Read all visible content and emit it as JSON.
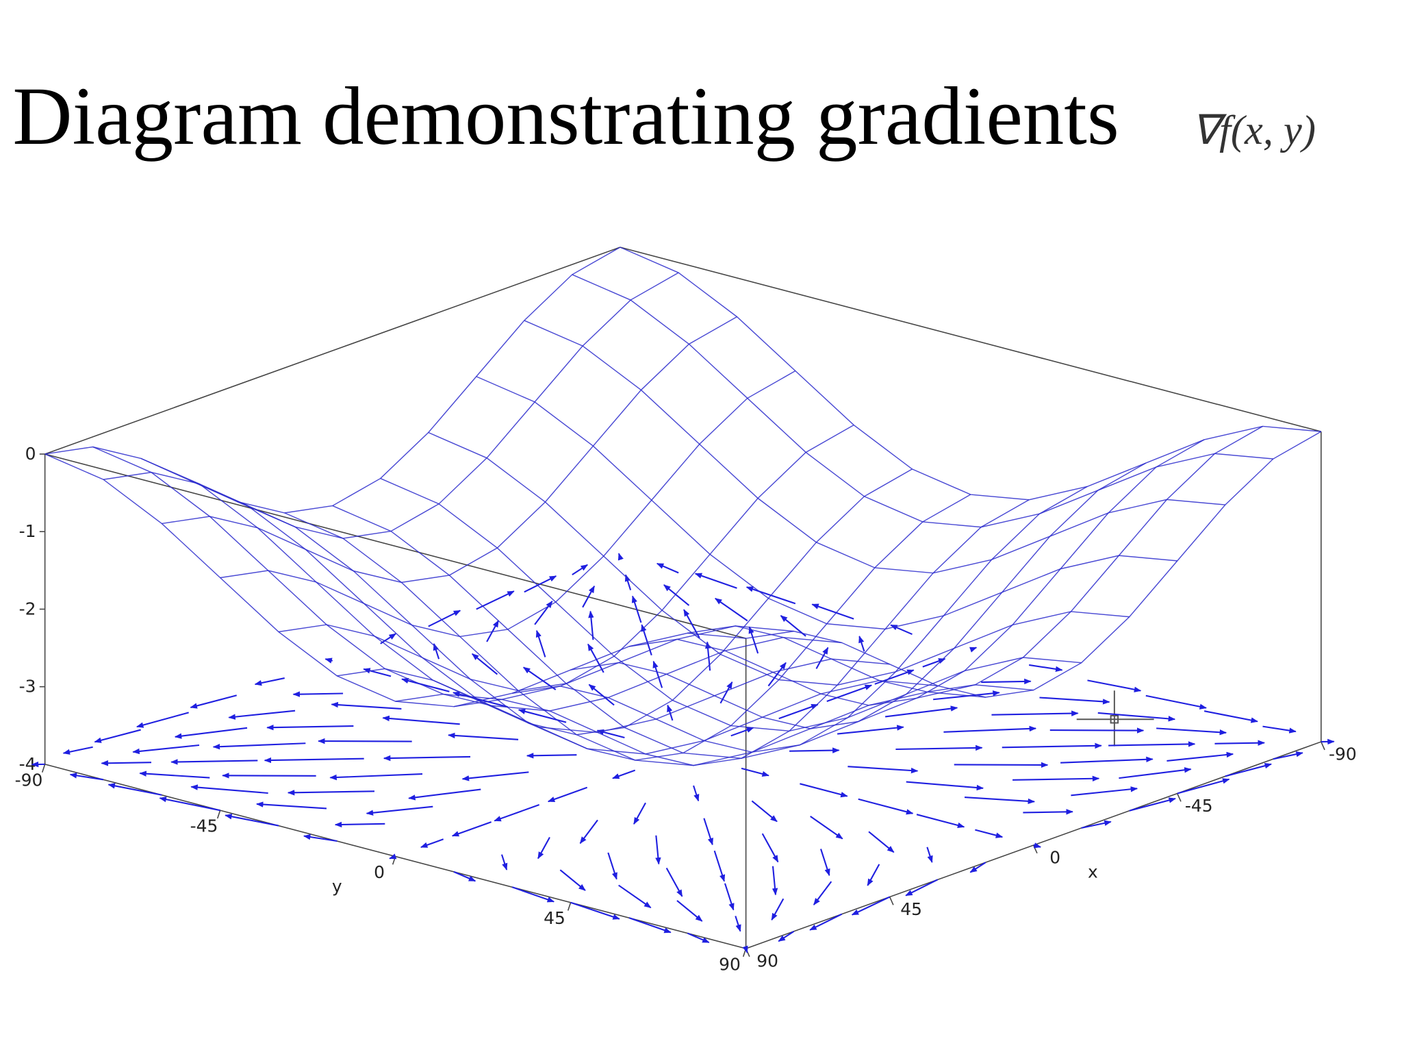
{
  "chart_data": {
    "type": "surface",
    "title": "Diagram demonstrating gradients",
    "annotation": "∇f(x, y)",
    "x_label": "x",
    "y_label": "y",
    "x": [
      -90,
      -75,
      -60,
      -45,
      -30,
      -15,
      0,
      15,
      30,
      45,
      60,
      75,
      90
    ],
    "y": [
      -90,
      -75,
      -60,
      -45,
      -30,
      -15,
      0,
      15,
      30,
      45,
      60,
      75,
      90
    ],
    "z": [
      [
        0,
        -0.13,
        -0.5,
        -1,
        -1.5,
        -1.87,
        -2,
        -1.87,
        -1.5,
        -1,
        -0.5,
        -0.13,
        0
      ],
      [
        -0.13,
        -0.26,
        -0.63,
        -1.13,
        -1.63,
        -2,
        -2.13,
        -2,
        -1.63,
        -1.13,
        -0.63,
        -0.26,
        -0.13
      ],
      [
        -0.5,
        -0.63,
        -1,
        -1.5,
        -2,
        -2.37,
        -2.5,
        -2.37,
        -2,
        -1.5,
        -1,
        -0.63,
        -0.5
      ],
      [
        -1,
        -1.13,
        -1.5,
        -2,
        -2.5,
        -2.87,
        -3,
        -2.87,
        -2.5,
        -2,
        -1.5,
        -1.13,
        -1
      ],
      [
        -1.5,
        -1.63,
        -2,
        -2.5,
        -3,
        -3.37,
        -3.5,
        -3.37,
        -3,
        -2.5,
        -2,
        -1.63,
        -1.5
      ],
      [
        -1.87,
        -2,
        -2.37,
        -2.87,
        -3.37,
        -3.74,
        -3.87,
        -3.74,
        -3.37,
        -2.87,
        -2.37,
        -2,
        -1.87
      ],
      [
        -2,
        -2.13,
        -2.5,
        -3,
        -3.5,
        -3.87,
        -4,
        -3.87,
        -3.5,
        -3,
        -2.5,
        -2.13,
        -2
      ],
      [
        -1.87,
        -2,
        -2.37,
        -2.87,
        -3.37,
        -3.74,
        -3.87,
        -3.74,
        -3.37,
        -2.87,
        -2.37,
        -2,
        -1.87
      ],
      [
        -1.5,
        -1.63,
        -2,
        -2.5,
        -3,
        -3.37,
        -3.5,
        -3.37,
        -3,
        -2.5,
        -2,
        -1.63,
        -1.5
      ],
      [
        -1,
        -1.13,
        -1.5,
        -2,
        -2.5,
        -2.87,
        -3,
        -2.87,
        -2.5,
        -2,
        -1.5,
        -1.13,
        -1
      ],
      [
        -0.5,
        -0.63,
        -1,
        -1.5,
        -2,
        -2.37,
        -2.5,
        -2.37,
        -2,
        -1.5,
        -1,
        -0.63,
        -0.5
      ],
      [
        -0.13,
        -0.26,
        -0.63,
        -1.13,
        -1.63,
        -2,
        -2.13,
        -2,
        -1.63,
        -1.13,
        -0.63,
        -0.26,
        -0.13
      ],
      [
        0,
        -0.13,
        -0.5,
        -1,
        -1.5,
        -1.87,
        -2,
        -1.87,
        -1.5,
        -1,
        -0.5,
        -0.13,
        0
      ]
    ],
    "xlim": [
      -90,
      90
    ],
    "xticks": [
      -90,
      -45,
      0,
      45,
      90
    ],
    "ylim": [
      -90,
      90
    ],
    "yticks": [
      -90,
      -45,
      0,
      45,
      90
    ],
    "zlim": [
      -4,
      0
    ],
    "zticks": [
      -4,
      -3,
      -2,
      -1,
      0
    ],
    "mesh_color": "#2a2acc",
    "arrow_color": "#1f1fe0"
  }
}
